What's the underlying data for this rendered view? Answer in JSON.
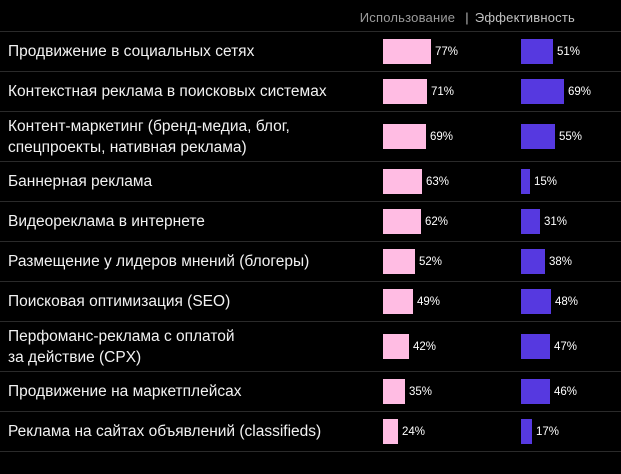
{
  "header": {
    "usage_label": "Использование",
    "separator": "|",
    "effectiveness_label": "Эффективность"
  },
  "colors": {
    "background": "#000000",
    "divider": "#2a2a2a",
    "usage_bar": "#ffbce3",
    "effectiveness_bar": "#5639e0",
    "header_usage_text": "#9c9c9c",
    "header_effectiveness_text": "#c2c2c2",
    "label_text": "#f2f2f2",
    "value_text": "#ffffff"
  },
  "chart_data": {
    "type": "bar",
    "orientation": "horizontal",
    "unit": "%",
    "value_labels": true,
    "legend_position": "top-right",
    "grid": false,
    "xlim": [
      0,
      100
    ],
    "categories": [
      "Продвижение в социальных сетях",
      "Контекстная реклама в поисковых системах",
      "Контент-маркетинг (бренд-медиа, блог,\nспецпроекты, нативная реклама)",
      "Баннерная реклама",
      "Видеореклама в интернете",
      "Размещение у лидеров мнений (блогеры)",
      "Поисковая оптимизация (SEO)",
      "Перфоманс-реклама с оплатой\nза действие (CPX)",
      "Продвижение на маркетплейсах",
      "Реклама на сайтах объявлений (classifieds)"
    ],
    "series": [
      {
        "name": "Использование",
        "color": "#ffbce3",
        "values": [
          77,
          71,
          69,
          63,
          62,
          52,
          49,
          42,
          35,
          24
        ],
        "value_labels_text": [
          "77%",
          "71%",
          "69%",
          "63%",
          "62%",
          "52%",
          "49%",
          "42%",
          "35%",
          "24%"
        ]
      },
      {
        "name": "Эффективность",
        "color": "#5639e0",
        "values": [
          51,
          69,
          55,
          15,
          31,
          38,
          48,
          47,
          46,
          17
        ],
        "value_labels_text": [
          "51%",
          "69%",
          "55%",
          "15%",
          "31%",
          "38%",
          "48%",
          "47%",
          "46%",
          "17%"
        ]
      }
    ]
  }
}
